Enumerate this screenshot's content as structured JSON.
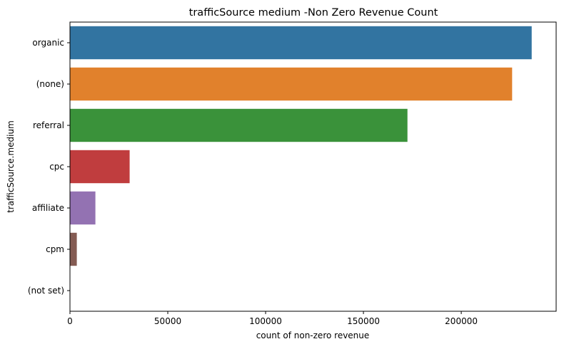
{
  "chart_data": {
    "type": "bar",
    "orientation": "horizontal",
    "title": "trafficSource medium -Non Zero Revenue Count",
    "xlabel": "count of non-zero revenue",
    "ylabel": "trafficSource.medium",
    "categories": [
      "organic",
      "(none)",
      "referral",
      "cpc",
      "affiliate",
      "cpm",
      "(not set)"
    ],
    "values": [
      236000,
      226000,
      172500,
      30500,
      13000,
      3500,
      50
    ],
    "colors": [
      "#3274a1",
      "#e1812c",
      "#3a923a",
      "#c03d3e",
      "#9372b2",
      "#845b53",
      "#d684bd"
    ],
    "xlim": [
      0,
      248500
    ],
    "xticks": [
      0,
      50000,
      100000,
      150000,
      200000
    ],
    "xtick_labels": [
      "0",
      "50000",
      "100000",
      "150000",
      "200000"
    ],
    "grid": false
  }
}
